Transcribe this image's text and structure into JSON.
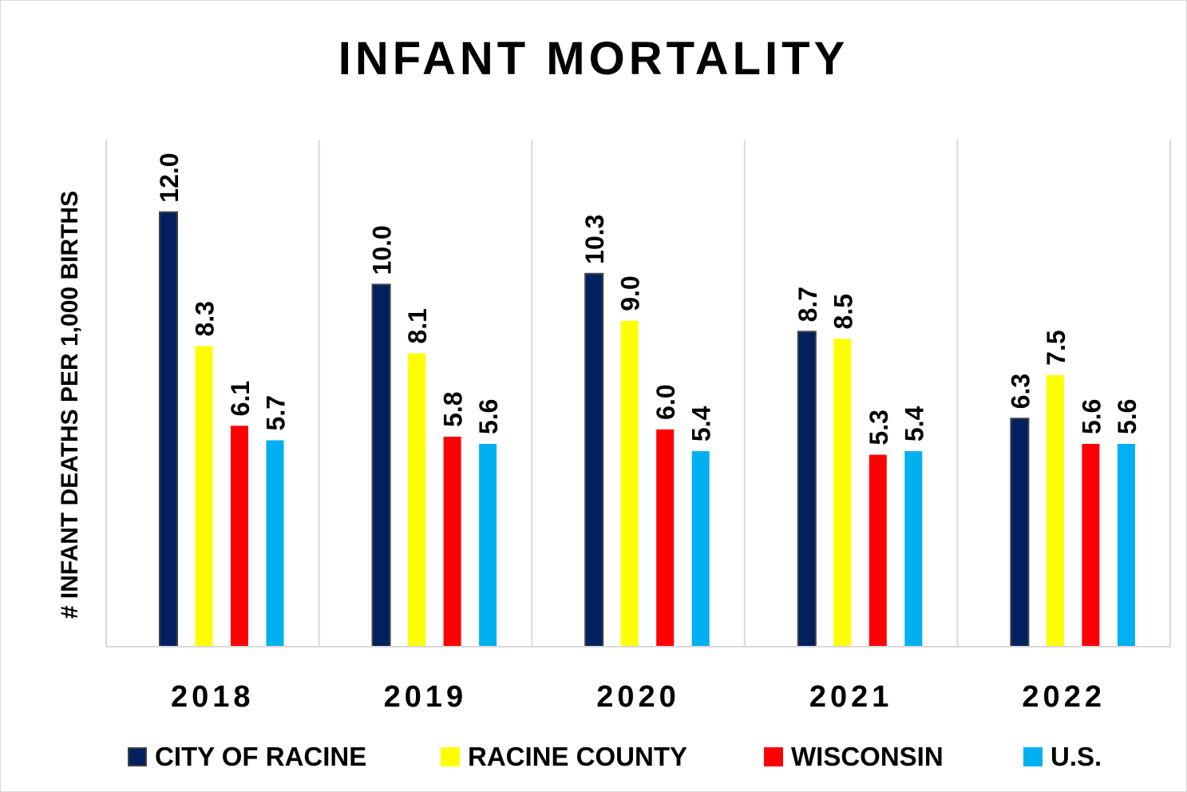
{
  "chart_data": {
    "type": "bar",
    "title": "INFANT MORTALITY",
    "ylabel": "# INFANT DEATHS PER 1,000 BIRTHS",
    "xlabel": "",
    "categories": [
      "2018",
      "2019",
      "2020",
      "2021",
      "2022"
    ],
    "ylim": [
      0,
      14
    ],
    "grid": "vertical separators between categories",
    "legend_position": "bottom",
    "series": [
      {
        "name": "CITY OF RACINE",
        "color": "#002060",
        "values": [
          12.0,
          10.0,
          10.3,
          8.7,
          6.3
        ],
        "labels": [
          "12.0",
          "10.0",
          "10.3",
          "8.7",
          "6.3"
        ]
      },
      {
        "name": "RACINE COUNTY",
        "color": "#FFFF00",
        "values": [
          8.3,
          8.1,
          9.0,
          8.5,
          7.5
        ],
        "labels": [
          "8.3",
          "8.1",
          "9.0",
          "8.5",
          "7.5"
        ]
      },
      {
        "name": "WISCONSIN",
        "color": "#FF0000",
        "values": [
          6.1,
          5.8,
          6.0,
          5.3,
          5.6
        ],
        "labels": [
          "6.1",
          "5.8",
          "6.0",
          "5.3",
          "5.6"
        ]
      },
      {
        "name": "U.S.",
        "color": "#00B0F0",
        "values": [
          5.7,
          5.6,
          5.4,
          5.4,
          5.6
        ],
        "labels": [
          "5.7",
          "5.6",
          "5.4",
          "5.4",
          "5.6"
        ]
      }
    ]
  }
}
